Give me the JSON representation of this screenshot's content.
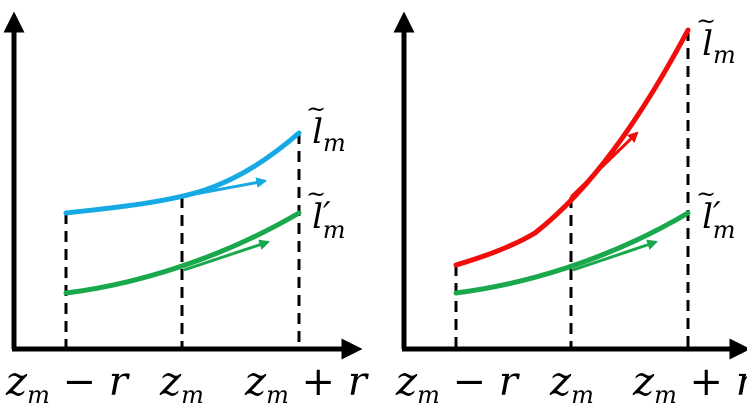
{
  "colors": {
    "axis": "#000000",
    "guide": "#000000",
    "blue": "#16A9E3",
    "green": "#19A84C",
    "red": "#F20D0D"
  },
  "panels": [
    {
      "id": "left",
      "top_curve": {
        "label_main": "l",
        "label_sub": "m",
        "color": "blue",
        "label_tilde": "~",
        "label_prime": ""
      },
      "bottom_curve": {
        "label_main": "l",
        "label_sub": "m",
        "color": "green",
        "label_tilde": "~",
        "label_prime": "′"
      },
      "ticks": [
        {
          "main": "z",
          "sub": "m",
          "suffix": " − r"
        },
        {
          "main": "z",
          "sub": "m",
          "suffix": ""
        },
        {
          "main": "z",
          "sub": "m",
          "suffix": " + r"
        }
      ]
    },
    {
      "id": "right",
      "top_curve": {
        "label_main": "l",
        "label_sub": "m",
        "color": "red",
        "label_tilde": "~",
        "label_prime": ""
      },
      "bottom_curve": {
        "label_main": "l",
        "label_sub": "m",
        "color": "green",
        "label_tilde": "~",
        "label_prime": "′"
      },
      "ticks": [
        {
          "main": "z",
          "sub": "m",
          "suffix": " − r"
        },
        {
          "main": "z",
          "sub": "m",
          "suffix": ""
        },
        {
          "main": "z",
          "sub": "m",
          "suffix": " + r"
        }
      ]
    }
  ]
}
